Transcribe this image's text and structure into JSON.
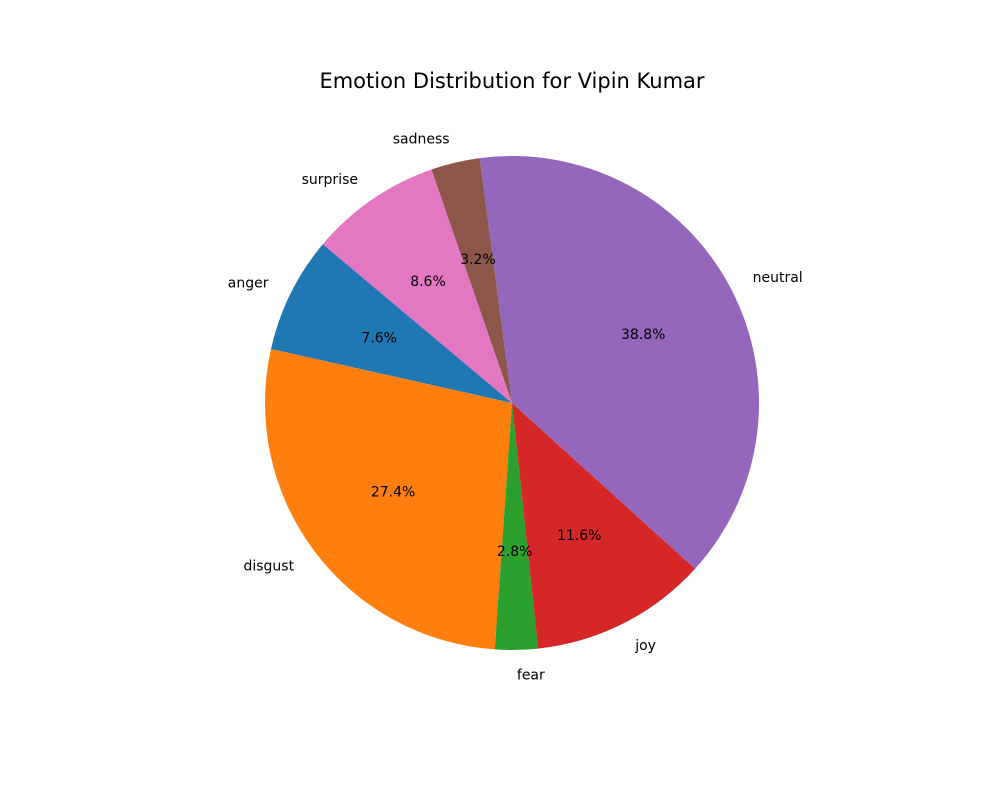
{
  "chart_data": {
    "type": "pie",
    "title": "Emotion Distribution for Vipin Kumar",
    "start_angle_deg": 140,
    "direction": "counterclockwise",
    "slices": [
      {
        "label": "anger",
        "value": 7.6,
        "pct_label": "7.6%",
        "color": "#1f77b4"
      },
      {
        "label": "disgust",
        "value": 27.4,
        "pct_label": "27.4%",
        "color": "#ff7f0e"
      },
      {
        "label": "fear",
        "value": 2.8,
        "pct_label": "2.8%",
        "color": "#2ca02c"
      },
      {
        "label": "joy",
        "value": 11.6,
        "pct_label": "11.6%",
        "color": "#d62728"
      },
      {
        "label": "neutral",
        "value": 38.8,
        "pct_label": "38.8%",
        "color": "#9467bd"
      },
      {
        "label": "sadness",
        "value": 3.2,
        "pct_label": "3.2%",
        "color": "#8c564b"
      },
      {
        "label": "surprise",
        "value": 8.6,
        "pct_label": "8.6%",
        "color": "#e377c2"
      }
    ]
  }
}
